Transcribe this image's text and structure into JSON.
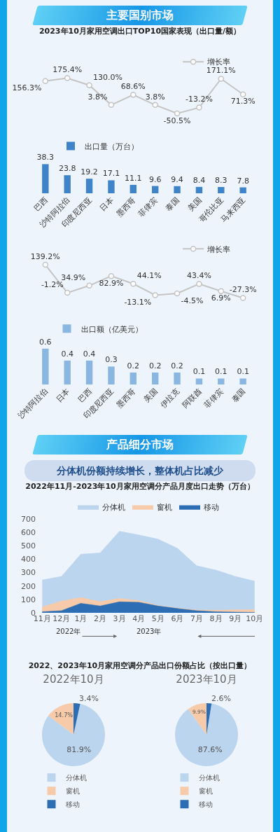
{
  "chart_data": [
    {
      "type": "other",
      "title": "主要国别市场"
    },
    {
      "type": "line",
      "title": "2023年10月家用空调出口TOP10国家表现（出口量/额）",
      "categories": [
        null,
        null,
        null,
        null,
        null,
        null,
        null,
        null,
        null,
        null
      ],
      "legend": "top right",
      "tick_labels": false,
      "marker": "circle",
      "series": [
        {
          "name": "增长率",
          "color": "#c4c4c4",
          "values": [
            156.3,
            175.4,
            130.0,
            3.8,
            68.6,
            3.8,
            -50.5,
            -13.2,
            171.1,
            71.3
          ],
          "value_labels": [
            "156.3%",
            "175.4%",
            "130.0%",
            "3.8%",
            "68.6%",
            "3.8%",
            "-50.5%",
            "-13.2%",
            "171.1%",
            "71.3%"
          ]
        }
      ]
    },
    {
      "type": "bar",
      "categories": [
        "巴西",
        "沙特阿拉伯",
        "印度尼西亚",
        "日本",
        "墨西哥",
        "菲律宾",
        "泰国",
        "美国",
        "哥伦比亚",
        "马来西亚"
      ],
      "legend": "top left",
      "tick_labels": "x",
      "data_labels": true,
      "series": [
        {
          "name": "出口量（万台）",
          "color": "#3f83c8",
          "values": [
            38.3,
            23.8,
            19.2,
            17.1,
            11.1,
            9.6,
            9.4,
            8.4,
            8.3,
            7.8
          ]
        }
      ]
    },
    {
      "type": "line",
      "categories": [
        null,
        null,
        null,
        null,
        null,
        null,
        null,
        null,
        null,
        null
      ],
      "legend": "top right",
      "tick_labels": false,
      "marker": "circle",
      "series": [
        {
          "name": "增长率",
          "color": "#c4c4c4",
          "values": [
            139.2,
            -1.2,
            34.9,
            82.9,
            44.1,
            -13.1,
            -4.5,
            43.4,
            6.9,
            -27.3
          ],
          "value_labels": [
            "139.2%",
            "-1.2%",
            "34.9%",
            "82.9%",
            "44.1%",
            "-13.1%",
            "-4.5%",
            "43.4%",
            "6.9%",
            "-27.3%"
          ]
        }
      ]
    },
    {
      "type": "bar",
      "categories": [
        "沙特阿拉伯",
        "日本",
        "巴西",
        "印度尼西亚",
        "墨西哥",
        "美国",
        "伊拉克",
        "阿联酋",
        "菲律宾",
        "泰国"
      ],
      "legend": "top left",
      "tick_labels": "x",
      "data_labels": true,
      "series": [
        {
          "name": "出口额（亿美元）",
          "color": "#8ab6e2",
          "values": [
            0.6,
            0.4,
            0.4,
            0.3,
            0.2,
            0.2,
            0.2,
            0.1,
            0.1,
            0.1
          ]
        }
      ]
    },
    {
      "type": "other",
      "title": "产品细分市场",
      "subtitle": "分体机份额持续增长，整体机占比减少"
    },
    {
      "type": "area",
      "title": "2022年11月-2023年10月家用空调分产品月度出口走势（万台）",
      "categories": [
        "11月",
        "12月",
        "1月",
        "2月",
        "3月",
        "4月",
        "5月",
        "6月",
        "7月",
        "8月",
        "9月",
        "10月"
      ],
      "ylim": [
        0,
        700
      ],
      "yticks": [
        0,
        100,
        200,
        300,
        400,
        500,
        600,
        700
      ],
      "legend": "top",
      "annotations": [
        "2022年",
        "2023年"
      ],
      "series": [
        {
          "name": "分体机",
          "color": "#bcd5ee",
          "values": [
            245,
            272,
            437,
            447,
            608,
            581,
            550,
            482,
            351,
            319,
            272,
            237
          ]
        },
        {
          "name": "窗机",
          "color": "#f7cba9",
          "values": [
            43,
            87,
            114,
            84,
            107,
            92,
            55,
            35,
            21,
            19,
            22,
            24
          ]
        },
        {
          "name": "移动",
          "color": "#2d6db3",
          "values": [
            8,
            16,
            71,
            51,
            82,
            79,
            51,
            32,
            16,
            8,
            5,
            3
          ]
        }
      ]
    },
    {
      "type": "other",
      "title": "2022、2023年10月家用空调分产品出口份额占比（按出口量）"
    },
    {
      "type": "pie",
      "title": "2022年10月",
      "categories": [
        "分体机",
        "窗机",
        "移动"
      ],
      "values": [
        81.9,
        14.7,
        3.4
      ],
      "colors": [
        "#bcd5ee",
        "#f7cba9",
        "#2d6db3"
      ],
      "value_labels": [
        "81.9%",
        "14.7%",
        "3.4%"
      ],
      "legend": "bottom"
    },
    {
      "type": "pie",
      "title": "2023年10月",
      "categories": [
        "分体机",
        "窗机",
        "移动"
      ],
      "values": [
        87.6,
        9.9,
        2.6
      ],
      "colors": [
        "#bcd5ee",
        "#f7cba9",
        "#2d6db3"
      ],
      "value_labels": [
        "87.6%",
        "9.9%",
        "2.6%"
      ],
      "legend": "bottom"
    }
  ]
}
